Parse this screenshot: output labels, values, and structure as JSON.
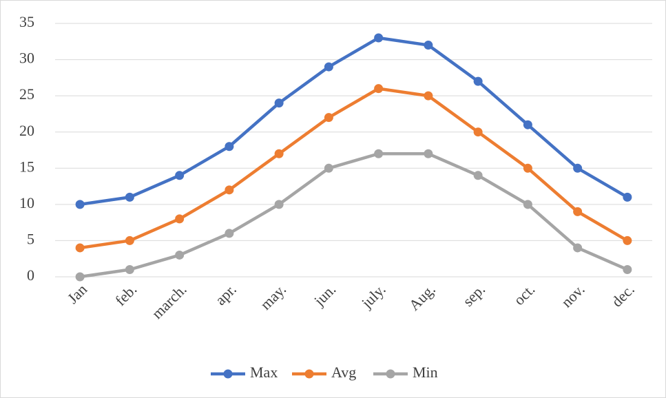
{
  "chart_data": {
    "type": "line",
    "categories": [
      "Jan",
      "feb.",
      "march.",
      "apr.",
      "may.",
      "jun.",
      "july.",
      "Aug.",
      "sep.",
      "oct.",
      "nov.",
      "dec."
    ],
    "series": [
      {
        "name": "Max",
        "color": "#4472c4",
        "values": [
          10,
          11,
          14,
          18,
          24,
          29,
          33,
          32,
          27,
          21,
          15,
          11
        ]
      },
      {
        "name": "Avg",
        "color": "#ed7d31",
        "values": [
          4,
          5,
          8,
          12,
          17,
          22,
          26,
          25,
          20,
          15,
          9,
          5
        ]
      },
      {
        "name": "Min",
        "color": "#a5a5a5",
        "values": [
          0,
          1,
          3,
          6,
          10,
          15,
          17,
          17,
          14,
          10,
          4,
          1
        ]
      }
    ],
    "ylim": [
      0,
      35
    ],
    "yticks": [
      0,
      5,
      10,
      15,
      20,
      25,
      30,
      35
    ],
    "grid": true,
    "legend": "bottom"
  }
}
